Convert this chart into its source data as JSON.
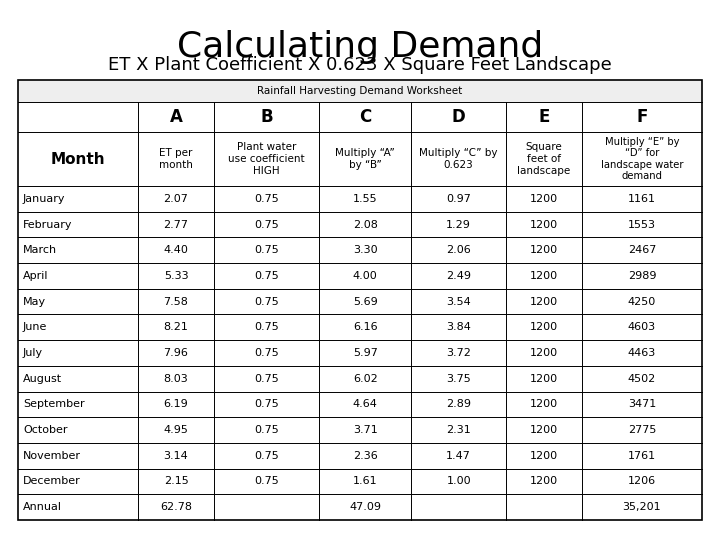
{
  "title": "Calculating Demand",
  "subtitle": "ET X Plant Coefficient X 0.623 X Square Feet Landscape",
  "worksheet_title": "Rainfall Harvesting Demand Worksheet",
  "col_headers": [
    "A",
    "B",
    "C",
    "D",
    "E",
    "F"
  ],
  "sub_headers": [
    "ET per\nmonth",
    "Plant water\nuse coefficient\nHIGH",
    "Multiply “A”\nby “B”",
    "Multiply “C” by\n0.623",
    "Square\nfeet of\nlandscape",
    "Multiply “E” by\n“D” for\nlandscape water\ndemand"
  ],
  "row_label": "Month",
  "months": [
    "January",
    "February",
    "March",
    "April",
    "May",
    "June",
    "July",
    "August",
    "September",
    "October",
    "November",
    "December",
    "Annual"
  ],
  "col_A": [
    "2.07",
    "2.77",
    "4.40",
    "5.33",
    "7.58",
    "8.21",
    "7.96",
    "8.03",
    "6.19",
    "4.95",
    "3.14",
    "2.15",
    "62.78"
  ],
  "col_B": [
    "0.75",
    "0.75",
    "0.75",
    "0.75",
    "0.75",
    "0.75",
    "0.75",
    "0.75",
    "0.75",
    "0.75",
    "0.75",
    "0.75",
    ""
  ],
  "col_C": [
    "1.55",
    "2.08",
    "3.30",
    "4.00",
    "5.69",
    "6.16",
    "5.97",
    "6.02",
    "4.64",
    "3.71",
    "2.36",
    "1.61",
    "47.09"
  ],
  "col_D": [
    "0.97",
    "1.29",
    "2.06",
    "2.49",
    "3.54",
    "3.84",
    "3.72",
    "3.75",
    "2.89",
    "2.31",
    "1.47",
    "1.00",
    ""
  ],
  "col_E": [
    "1200",
    "1200",
    "1200",
    "1200",
    "1200",
    "1200",
    "1200",
    "1200",
    "1200",
    "1200",
    "1200",
    "1200",
    ""
  ],
  "col_F": [
    "1161",
    "1553",
    "2467",
    "2989",
    "4250",
    "4603",
    "4463",
    "4502",
    "3471",
    "2775",
    "1761",
    "1206",
    "35,201"
  ],
  "title_fontsize": 26,
  "subtitle_fontsize": 13,
  "background_color": "#ffffff"
}
